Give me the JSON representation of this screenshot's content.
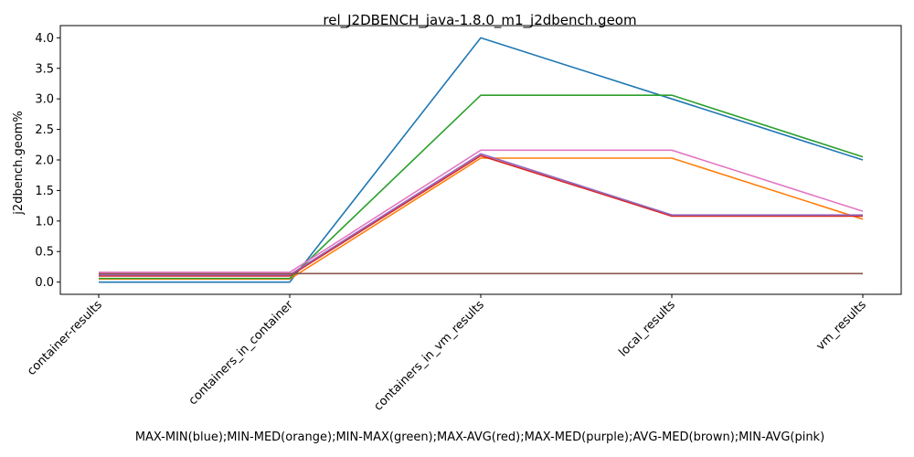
{
  "chart_data": {
    "type": "line",
    "title": "rel_J2DBENCH_java-1.8.0_m1_j2dbench.geom",
    "xlabel": "MAX-MIN(blue);MIN-MED(orange);MIN-MAX(green);MAX-AVG(red);MAX-MED(purple);AVG-MED(brown);MIN-AVG(pink)",
    "ylabel": "j2dbench.geom%",
    "categories": [
      "container-results",
      "containers_in_container",
      "containers_in_vm_results",
      "local_results",
      "vm_results"
    ],
    "ylim": [
      -0.2,
      4.2
    ],
    "yticks": [
      0.0,
      0.5,
      1.0,
      1.5,
      2.0,
      2.5,
      3.0,
      3.5,
      4.0
    ],
    "ytick_labels": [
      "0.0",
      "0.5",
      "1.0",
      "1.5",
      "2.0",
      "2.5",
      "3.0",
      "3.5",
      "4.0"
    ],
    "grid": false,
    "series": [
      {
        "color": "#1f77b4",
        "values": [
          0.0,
          0.0,
          4.0,
          3.0,
          2.0
        ]
      },
      {
        "color": "#ff7f0e",
        "values": [
          0.05,
          0.05,
          2.03,
          2.03,
          1.03
        ]
      },
      {
        "color": "#2ca02c",
        "values": [
          0.06,
          0.06,
          3.06,
          3.06,
          2.05
        ]
      },
      {
        "color": "#d62728",
        "values": [
          0.1,
          0.1,
          2.07,
          1.08,
          1.08
        ]
      },
      {
        "color": "#9467bd",
        "values": [
          0.12,
          0.12,
          2.1,
          1.1,
          1.1
        ]
      },
      {
        "color": "#8c564b",
        "values": [
          0.14,
          0.14,
          0.14,
          0.14,
          0.14
        ]
      },
      {
        "color": "#e377c2",
        "values": [
          0.16,
          0.16,
          2.16,
          2.16,
          1.16
        ]
      }
    ]
  }
}
